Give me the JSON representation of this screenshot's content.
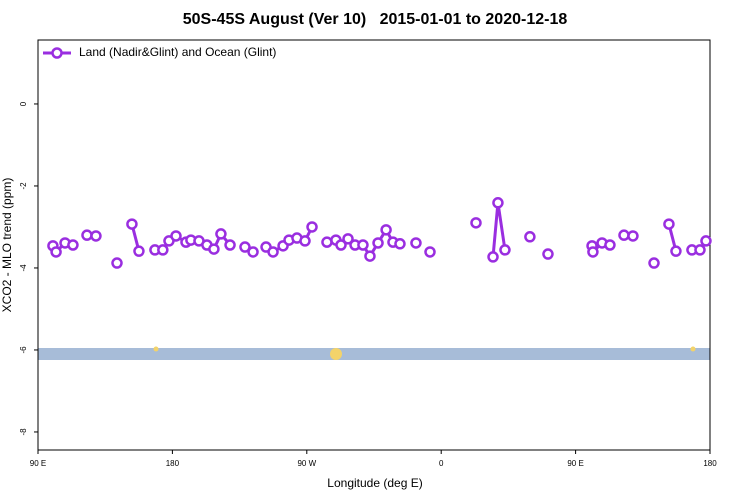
{
  "chart_data": {
    "type": "line",
    "title": "50S-45S August (Ver 10)   2015-01-01 to 2020-12-18",
    "xlabel": "Longitude (deg E)",
    "ylabel": "XCO2 - MLO trend (ppm)",
    "xlim": [
      90,
      540
    ],
    "xticks": [
      {
        "value": 90,
        "label": "90 E"
      },
      {
        "value": 180,
        "label": "180"
      },
      {
        "value": 270,
        "label": "90 W"
      },
      {
        "value": 360,
        "label": "0"
      },
      {
        "value": 450,
        "label": "90 E"
      },
      {
        "value": 540,
        "label": "180"
      }
    ],
    "ylim": [
      -8.44,
      1.56
    ],
    "yticks": [
      0,
      -2,
      -4,
      -6,
      -8
    ],
    "legend": "top-left",
    "series": [
      {
        "name": "Land (Nadir&Glint) and Ocean (Glint)",
        "color": "#9a2ee0",
        "x": [
          100.0,
          102.1,
          108.1,
          113.4,
          null,
          122.8,
          128.8,
          null,
          142.9,
          null,
          152.9,
          157.6,
          null,
          168.3,
          173.6,
          177.7,
          182.4,
          189.1,
          192.4,
          197.8,
          203.1,
          207.8,
          212.5,
          218.6,
          null,
          228.6,
          234.0,
          null,
          242.7,
          247.4,
          254.1,
          258.1,
          263.4,
          268.8,
          273.5,
          null,
          283.5,
          289.5,
          292.9,
          297.6,
          302.3,
          307.6,
          312.3,
          317.7,
          323.1,
          327.7,
          332.4,
          null,
          343.1,
          null,
          352.5,
          null,
          383.3,
          null,
          394.7,
          398.0,
          402.7,
          null,
          419.4,
          null,
          431.5,
          null,
          461.0,
          461.6,
          467.7,
          473.0,
          null,
          482.4,
          488.4,
          null,
          502.5,
          null,
          512.5,
          517.2,
          null,
          527.9,
          533.3,
          537.3
        ],
        "values": [
          -3.46,
          -3.61,
          -3.39,
          -3.44,
          null,
          -3.2,
          -3.22,
          null,
          -3.88,
          null,
          -2.93,
          -3.59,
          null,
          -3.56,
          -3.56,
          -3.34,
          -3.22,
          -3.37,
          -3.32,
          -3.34,
          -3.44,
          -3.54,
          -3.17,
          -3.44,
          null,
          -3.49,
          -3.61,
          null,
          -3.49,
          -3.61,
          -3.46,
          -3.32,
          -3.27,
          -3.34,
          -3.0,
          null,
          -3.37,
          -3.32,
          -3.44,
          -3.29,
          -3.44,
          -3.44,
          -3.71,
          -3.39,
          -3.07,
          -3.37,
          -3.41,
          null,
          -3.39,
          null,
          -3.61,
          null,
          -2.9,
          null,
          -3.73,
          -2.41,
          -3.56,
          null,
          -3.24,
          null,
          -3.66,
          null,
          -3.46,
          -3.61,
          -3.39,
          -3.44,
          null,
          -3.2,
          -3.22,
          null,
          -3.88,
          null,
          -2.93,
          -3.59,
          null,
          -3.56,
          -3.56,
          -3.34
        ]
      }
    ]
  }
}
